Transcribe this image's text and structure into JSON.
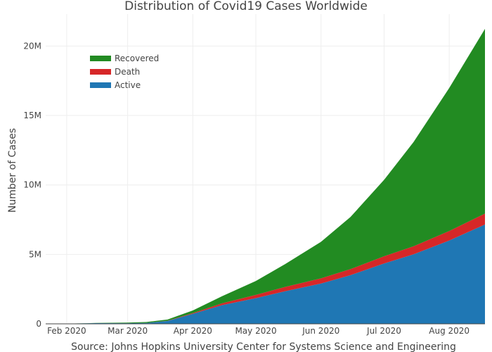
{
  "chart_data": {
    "type": "area",
    "stacked": true,
    "title": "Distribution of Covid19 Cases Worldwide",
    "ylabel": "Number of Cases",
    "source": "Source: Johns Hopkins University Center for Systems Science and Engineering",
    "ylim": [
      0,
      22300000
    ],
    "xlim": [
      "2020-01-22",
      "2020-08-18"
    ],
    "x_ticks": [
      {
        "date": "2020-02-01",
        "label": "Feb 2020"
      },
      {
        "date": "2020-03-01",
        "label": "Mar 2020"
      },
      {
        "date": "2020-04-01",
        "label": "Apr 2020"
      },
      {
        "date": "2020-05-01",
        "label": "May 2020"
      },
      {
        "date": "2020-06-01",
        "label": "Jun 2020"
      },
      {
        "date": "2020-07-01",
        "label": "Jul 2020"
      },
      {
        "date": "2020-08-01",
        "label": "Aug 2020"
      }
    ],
    "y_ticks": [
      {
        "value": 0,
        "label": "0"
      },
      {
        "value": 5000000,
        "label": "5M"
      },
      {
        "value": 10000000,
        "label": "10M"
      },
      {
        "value": 15000000,
        "label": "15M"
      },
      {
        "value": 20000000,
        "label": "20M"
      }
    ],
    "grid": true,
    "legend_position": "top-left",
    "legend": [
      "Recovered",
      "Death",
      "Active"
    ],
    "x": [
      "2020-01-22",
      "2020-02-01",
      "2020-02-15",
      "2020-03-01",
      "2020-03-10",
      "2020-03-20",
      "2020-04-01",
      "2020-04-15",
      "2020-05-01",
      "2020-05-15",
      "2020-06-01",
      "2020-06-15",
      "2020-07-01",
      "2020-07-15",
      "2020-08-01",
      "2020-08-18"
    ],
    "series": [
      {
        "name": "Active",
        "color": "#1f77b4",
        "values": [
          500,
          10000,
          50000,
          45000,
          60000,
          210000,
          720000,
          1350000,
          1850000,
          2350000,
          2900000,
          3500000,
          4350000,
          5000000,
          6000000,
          7150000
        ]
      },
      {
        "name": "Death",
        "color": "#d62728",
        "values": [
          17,
          260,
          1520,
          3000,
          4300,
          12000,
          51000,
          136000,
          234000,
          310000,
          374000,
          440000,
          517000,
          582000,
          683000,
          787000
        ]
      },
      {
        "name": "Recovered",
        "color": "#228b22",
        "values": [
          28,
          280,
          9300,
          45000,
          65000,
          88000,
          190000,
          510000,
          1000000,
          1650000,
          2630000,
          3750000,
          5500000,
          7500000,
          10300000,
          13300000
        ]
      }
    ]
  }
}
